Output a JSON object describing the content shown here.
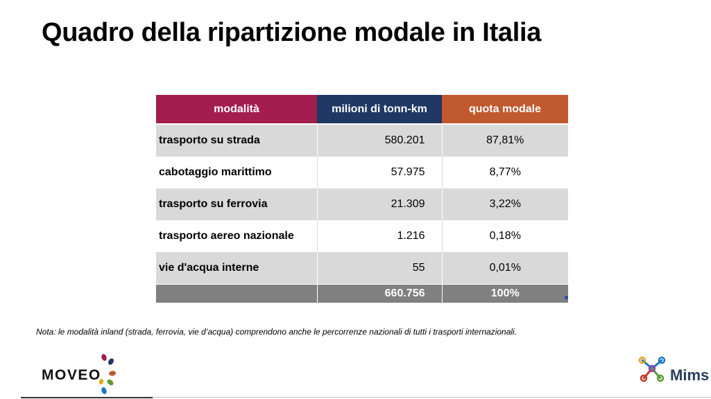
{
  "title": "Quadro della ripartizione modale in Italia",
  "table": {
    "headers": [
      "modalità",
      "milioni di tonn-km",
      "quota modale"
    ],
    "header_colors": [
      "#a31d4f",
      "#1f3864",
      "#c0592e"
    ],
    "rows": [
      {
        "mode": "trasporto su strada",
        "tonn_km": "580.201",
        "share": "87,81%"
      },
      {
        "mode": "cabotaggio marittimo",
        "tonn_km": "57.975",
        "share": "8,77%"
      },
      {
        "mode": "trasporto su ferrovia",
        "tonn_km": "21.309",
        "share": "3,22%"
      },
      {
        "mode": "trasporto aereo nazionale",
        "tonn_km": "1.216",
        "share": "0,18%"
      },
      {
        "mode": "vie d'acqua interne",
        "tonn_km": "55",
        "share": "0,01%"
      }
    ],
    "total": {
      "mode": "",
      "tonn_km": "660.756",
      "share": "100%"
    }
  },
  "note": "Nota: le modalità inland (strada, ferrovia, vie d’acqua) comprendono anche le percorrenze nazionali di tutti i trasporti internazionali.",
  "logos": {
    "left": "MOVEO",
    "right": "Mims"
  }
}
